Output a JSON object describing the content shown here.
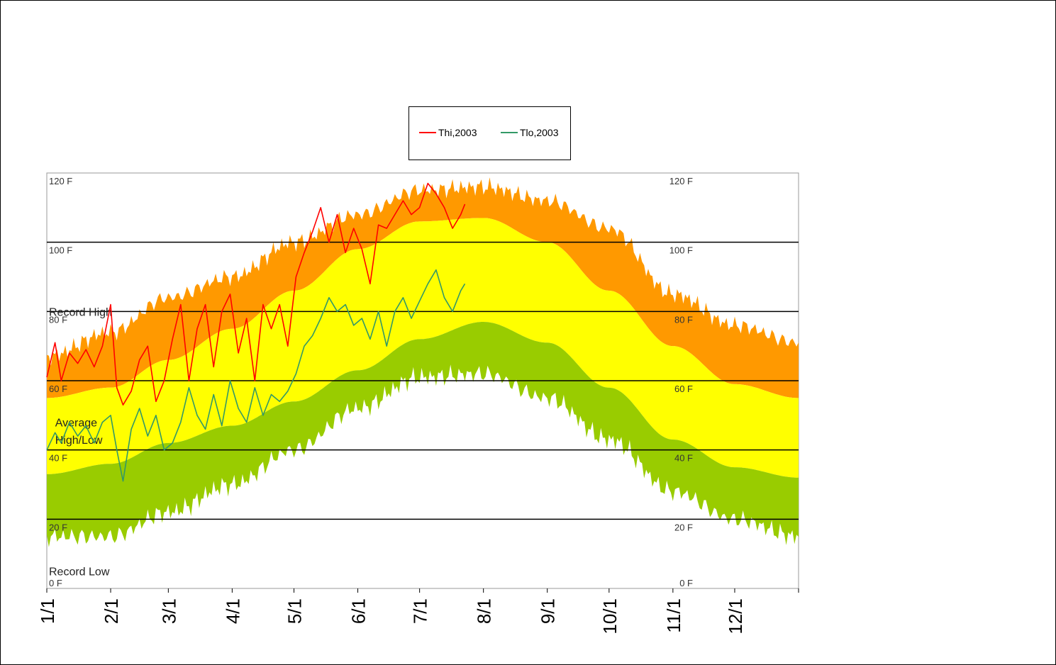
{
  "colors": {
    "record_band": "#ff9900",
    "average_band": "#ffff00",
    "low_band": "#99cc00",
    "thi_line": "#ff0000",
    "tlo_line": "#339966",
    "grid": "#000000"
  },
  "chart_data": {
    "type": "area",
    "title": "",
    "xlabel": "",
    "ylabel": "",
    "x_ticks": [
      "1/1",
      "2/1",
      "3/1",
      "4/1",
      "5/1",
      "6/1",
      "7/1",
      "8/1",
      "9/1",
      "10/1",
      "11/1",
      "12/1"
    ],
    "x_tick_days": [
      1,
      32,
      60,
      91,
      121,
      152,
      182,
      213,
      244,
      274,
      305,
      335
    ],
    "xlim": [
      1,
      366
    ],
    "y_ticks": [
      "0 F",
      "20 F",
      "40 F",
      "60 F",
      "80 F",
      "100 F",
      "120 F"
    ],
    "y_tick_values": [
      0,
      20,
      40,
      60,
      80,
      100,
      120
    ],
    "ylim": [
      0,
      120
    ],
    "grid_y": [
      20,
      40,
      60,
      80,
      100
    ],
    "annotations": [
      {
        "text": "Record High",
        "x": 1,
        "y": 80
      },
      {
        "text": "Average",
        "x": 4,
        "y": 48
      },
      {
        "text": "High/Low",
        "x": 4,
        "y": 43
      },
      {
        "text": "Record Low",
        "x": 1,
        "y": 5
      }
    ],
    "legend": {
      "position": "top-center",
      "entries": [
        "Thi,2003",
        "Tlo,2003"
      ]
    },
    "bands": {
      "x": [
        1,
        32,
        60,
        91,
        121,
        152,
        182,
        213,
        244,
        274,
        305,
        335,
        366
      ],
      "record_high": [
        67,
        74,
        84,
        90,
        100,
        108,
        115,
        116,
        112,
        104,
        85,
        76,
        71
      ],
      "average_high": [
        55,
        58,
        66,
        75,
        86,
        98,
        106,
        107,
        100,
        86,
        70,
        59,
        55
      ],
      "average_low": [
        33,
        36,
        42,
        47,
        54,
        63,
        72,
        77,
        71,
        58,
        43,
        35,
        32
      ],
      "record_low": [
        15,
        15,
        22,
        30,
        40,
        52,
        61,
        62,
        55,
        43,
        28,
        20,
        15
      ]
    },
    "series": [
      {
        "name": "Thi,2003",
        "x": [
          1,
          5,
          8,
          12,
          16,
          20,
          24,
          28,
          32,
          35,
          38,
          42,
          46,
          50,
          54,
          58,
          62,
          66,
          70,
          74,
          78,
          82,
          86,
          90,
          94,
          98,
          102,
          106,
          110,
          114,
          118,
          122,
          126,
          130,
          134,
          138,
          142,
          146,
          150,
          154,
          158,
          162,
          166,
          170,
          174,
          178,
          182,
          186,
          190,
          194,
          198,
          202,
          204
        ],
        "values": [
          61,
          71,
          60,
          68,
          65,
          69,
          64,
          70,
          82,
          58,
          53,
          57,
          66,
          70,
          54,
          60,
          72,
          82,
          60,
          75,
          82,
          64,
          80,
          85,
          68,
          78,
          60,
          82,
          75,
          82,
          70,
          90,
          97,
          103,
          110,
          100,
          108,
          97,
          104,
          98,
          88,
          105,
          104,
          108,
          112,
          108,
          110,
          117,
          114,
          110,
          104,
          108,
          111
        ]
      },
      {
        "name": "Tlo,2003",
        "x": [
          1,
          5,
          8,
          12,
          16,
          20,
          24,
          28,
          32,
          35,
          38,
          42,
          46,
          50,
          54,
          58,
          62,
          66,
          70,
          74,
          78,
          82,
          86,
          90,
          94,
          98,
          102,
          106,
          110,
          114,
          118,
          122,
          126,
          130,
          134,
          138,
          142,
          146,
          150,
          154,
          158,
          162,
          166,
          170,
          174,
          178,
          182,
          186,
          190,
          194,
          198,
          202,
          204
        ],
        "values": [
          40,
          45,
          42,
          48,
          44,
          47,
          42,
          48,
          50,
          40,
          31,
          46,
          52,
          44,
          50,
          40,
          42,
          48,
          58,
          50,
          46,
          56,
          47,
          60,
          52,
          48,
          58,
          50,
          56,
          54,
          57,
          62,
          70,
          73,
          78,
          84,
          80,
          82,
          76,
          78,
          72,
          80,
          70,
          80,
          84,
          78,
          83,
          88,
          92,
          84,
          80,
          86,
          88
        ]
      }
    ]
  }
}
